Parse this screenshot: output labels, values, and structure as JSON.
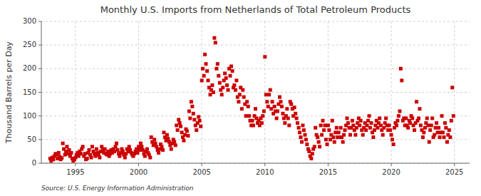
{
  "chart_data": {
    "type": "scatter",
    "title": "Monthly U.S. Imports from Netherlands of Total Petroleum Products",
    "y_label": "Thousand Barrels per Day",
    "source": "Source: U.S. Energy Information Administration",
    "color": "#cc0000",
    "marker": "square",
    "grid": true,
    "xlim": [
      1992.3,
      2026.2
    ],
    "xticks": [
      1995,
      2000,
      2005,
      2010,
      2015,
      2020,
      2025
    ],
    "ylim": [
      0,
      300
    ],
    "yticks": [
      0,
      50,
      100,
      150,
      200,
      250,
      300
    ],
    "x": [
      1993.0,
      1993.08,
      1993.17,
      1993.25,
      1993.33,
      1993.42,
      1993.5,
      1993.58,
      1993.67,
      1993.75,
      1993.83,
      1993.92,
      1994.0,
      1994.08,
      1994.17,
      1994.25,
      1994.33,
      1994.42,
      1994.5,
      1994.58,
      1994.67,
      1994.75,
      1994.83,
      1994.92,
      1995.0,
      1995.08,
      1995.17,
      1995.25,
      1995.33,
      1995.42,
      1995.5,
      1995.58,
      1995.67,
      1995.75,
      1995.83,
      1995.92,
      1996.0,
      1996.08,
      1996.17,
      1996.25,
      1996.33,
      1996.42,
      1996.5,
      1996.58,
      1996.67,
      1996.75,
      1996.83,
      1996.92,
      1997.0,
      1997.08,
      1997.17,
      1997.25,
      1997.33,
      1997.42,
      1997.5,
      1997.58,
      1997.67,
      1997.75,
      1997.83,
      1997.92,
      1998.0,
      1998.08,
      1998.17,
      1998.25,
      1998.33,
      1998.42,
      1998.5,
      1998.58,
      1998.67,
      1998.75,
      1998.83,
      1998.92,
      1999.0,
      1999.08,
      1999.17,
      1999.25,
      1999.33,
      1999.42,
      1999.5,
      1999.58,
      1999.67,
      1999.75,
      1999.83,
      1999.92,
      2000.0,
      2000.08,
      2000.17,
      2000.25,
      2000.33,
      2000.42,
      2000.5,
      2000.58,
      2000.67,
      2000.75,
      2000.83,
      2000.92,
      2001.0,
      2001.08,
      2001.17,
      2001.25,
      2001.33,
      2001.42,
      2001.5,
      2001.58,
      2001.67,
      2001.75,
      2001.83,
      2001.92,
      2002.0,
      2002.08,
      2002.17,
      2002.25,
      2002.33,
      2002.42,
      2002.5,
      2002.58,
      2002.67,
      2002.75,
      2002.83,
      2002.92,
      2003.0,
      2003.08,
      2003.17,
      2003.25,
      2003.33,
      2003.42,
      2003.5,
      2003.58,
      2003.67,
      2003.75,
      2003.83,
      2003.92,
      2004.0,
      2004.08,
      2004.17,
      2004.25,
      2004.33,
      2004.42,
      2004.5,
      2004.58,
      2004.67,
      2004.75,
      2004.83,
      2004.92,
      2005.0,
      2005.08,
      2005.17,
      2005.25,
      2005.33,
      2005.42,
      2005.5,
      2005.58,
      2005.67,
      2005.75,
      2005.83,
      2005.92,
      2006.0,
      2006.08,
      2006.17,
      2006.25,
      2006.33,
      2006.42,
      2006.5,
      2006.58,
      2006.67,
      2006.75,
      2006.83,
      2006.92,
      2007.0,
      2007.08,
      2007.17,
      2007.25,
      2007.33,
      2007.42,
      2007.5,
      2007.58,
      2007.67,
      2007.75,
      2007.83,
      2007.92,
      2008.0,
      2008.08,
      2008.17,
      2008.25,
      2008.33,
      2008.42,
      2008.5,
      2008.58,
      2008.67,
      2008.75,
      2008.83,
      2008.92,
      2009.0,
      2009.08,
      2009.17,
      2009.25,
      2009.33,
      2009.42,
      2009.5,
      2009.58,
      2009.67,
      2009.75,
      2009.83,
      2009.92,
      2010.0,
      2010.08,
      2010.17,
      2010.25,
      2010.33,
      2010.42,
      2010.5,
      2010.58,
      2010.67,
      2010.75,
      2010.83,
      2010.92,
      2011.0,
      2011.08,
      2011.17,
      2011.25,
      2011.33,
      2011.42,
      2011.5,
      2011.58,
      2011.67,
      2011.75,
      2011.83,
      2011.92,
      2012.0,
      2012.08,
      2012.17,
      2012.25,
      2012.33,
      2012.42,
      2012.5,
      2012.58,
      2012.67,
      2012.75,
      2012.83,
      2012.92,
      2013.0,
      2013.08,
      2013.17,
      2013.25,
      2013.33,
      2013.42,
      2013.5,
      2013.58,
      2013.67,
      2013.75,
      2013.83,
      2013.92,
      2014.0,
      2014.08,
      2014.17,
      2014.25,
      2014.33,
      2014.42,
      2014.5,
      2014.58,
      2014.67,
      2014.75,
      2014.83,
      2014.92,
      2015.0,
      2015.08,
      2015.17,
      2015.25,
      2015.33,
      2015.42,
      2015.5,
      2015.58,
      2015.67,
      2015.75,
      2015.83,
      2015.92,
      2016.0,
      2016.08,
      2016.17,
      2016.25,
      2016.33,
      2016.42,
      2016.5,
      2016.58,
      2016.67,
      2016.75,
      2016.83,
      2016.92,
      2017.0,
      2017.08,
      2017.17,
      2017.25,
      2017.33,
      2017.42,
      2017.5,
      2017.58,
      2017.67,
      2017.75,
      2017.83,
      2017.92,
      2018.0,
      2018.08,
      2018.17,
      2018.25,
      2018.33,
      2018.42,
      2018.5,
      2018.58,
      2018.67,
      2018.75,
      2018.83,
      2018.92,
      2019.0,
      2019.08,
      2019.17,
      2019.25,
      2019.33,
      2019.42,
      2019.5,
      2019.58,
      2019.67,
      2019.75,
      2019.83,
      2019.92,
      2020.0,
      2020.08,
      2020.17,
      2020.25,
      2020.33,
      2020.42,
      2020.5,
      2020.58,
      2020.67,
      2020.75,
      2020.83,
      2020.92,
      2021.0,
      2021.08,
      2021.17,
      2021.25,
      2021.33,
      2021.42,
      2021.5,
      2021.58,
      2021.67,
      2021.75,
      2021.83,
      2021.92,
      2022.0,
      2022.08,
      2022.17,
      2022.25,
      2022.33,
      2022.42,
      2022.5,
      2022.58,
      2022.67,
      2022.75,
      2022.83,
      2022.92,
      2023.0,
      2023.08,
      2023.17,
      2023.25,
      2023.33,
      2023.42,
      2023.5,
      2023.58,
      2023.67,
      2023.75,
      2023.83,
      2023.92,
      2024.0,
      2024.08,
      2024.17,
      2024.25,
      2024.33,
      2024.42,
      2024.5,
      2024.58,
      2024.67,
      2024.75,
      2024.83,
      2024.92
    ],
    "values": [
      10,
      5,
      12,
      8,
      15,
      20,
      18,
      10,
      22,
      14,
      8,
      11,
      42,
      30,
      18,
      25,
      35,
      20,
      28,
      15,
      22,
      10,
      5,
      8,
      12,
      18,
      22,
      15,
      25,
      20,
      30,
      35,
      15,
      20,
      8,
      10,
      22,
      28,
      18,
      12,
      35,
      25,
      20,
      15,
      30,
      22,
      18,
      12,
      25,
      35,
      28,
      22,
      30,
      20,
      18,
      25,
      15,
      20,
      28,
      22,
      30,
      25,
      35,
      42,
      28,
      20,
      15,
      22,
      30,
      25,
      18,
      12,
      20,
      30,
      25,
      35,
      28,
      22,
      18,
      15,
      20,
      25,
      30,
      22,
      35,
      28,
      42,
      35,
      28,
      20,
      15,
      25,
      30,
      22,
      18,
      12,
      55,
      45,
      38,
      50,
      42,
      35,
      28,
      22,
      30,
      40,
      35,
      28,
      65,
      55,
      48,
      60,
      52,
      45,
      38,
      30,
      42,
      50,
      45,
      38,
      80,
      70,
      92,
      85,
      78,
      65,
      55,
      48,
      60,
      72,
      68,
      58,
      110,
      95,
      130,
      120,
      105,
      92,
      80,
      70,
      85,
      98,
      90,
      78,
      175,
      200,
      185,
      230,
      210,
      195,
      175,
      160,
      145,
      155,
      165,
      150,
      265,
      255,
      200,
      210,
      185,
      170,
      155,
      145,
      160,
      175,
      190,
      180,
      165,
      155,
      200,
      185,
      205,
      195,
      160,
      165,
      155,
      175,
      140,
      130,
      145,
      160,
      115,
      155,
      140,
      125,
      100,
      130,
      120,
      100,
      90,
      80,
      90,
      80,
      100,
      115,
      95,
      85,
      90,
      80,
      95,
      85,
      100,
      110,
      225,
      145,
      130,
      120,
      145,
      155,
      115,
      130,
      105,
      120,
      110,
      95,
      110,
      125,
      140,
      130,
      120,
      105,
      95,
      85,
      100,
      115,
      95,
      80,
      130,
      125,
      115,
      100,
      118,
      105,
      95,
      85,
      75,
      65,
      55,
      45,
      80,
      70,
      60,
      50,
      40,
      30,
      25,
      15,
      10,
      20,
      30,
      35,
      75,
      60,
      55,
      45,
      35,
      80,
      60,
      90,
      70,
      80,
      50,
      40,
      80,
      70,
      50,
      60,
      90,
      55,
      45,
      65,
      75,
      55,
      65,
      55,
      75,
      55,
      45,
      60,
      70,
      80,
      95,
      85,
      75,
      60,
      75,
      90,
      80,
      70,
      60,
      75,
      85,
      95,
      80,
      90,
      70,
      60,
      75,
      85,
      70,
      80,
      90,
      100,
      75,
      85,
      65,
      55,
      70,
      80,
      90,
      75,
      85,
      95,
      80,
      70,
      60,
      75,
      85,
      95,
      80,
      70,
      80,
      70,
      60,
      50,
      40,
      75,
      85,
      80,
      90,
      100,
      110,
      200,
      175,
      90,
      95,
      80,
      95,
      80,
      75,
      90,
      85,
      100,
      95,
      80,
      70,
      85,
      130,
      90,
      95,
      115,
      80,
      70,
      55,
      65,
      75,
      85,
      95,
      80,
      45,
      70,
      80,
      95,
      55,
      60,
      75,
      85,
      65,
      75,
      55,
      65,
      100,
      65,
      55,
      85,
      75,
      45,
      60,
      70,
      55,
      90,
      160,
      100
    ]
  }
}
